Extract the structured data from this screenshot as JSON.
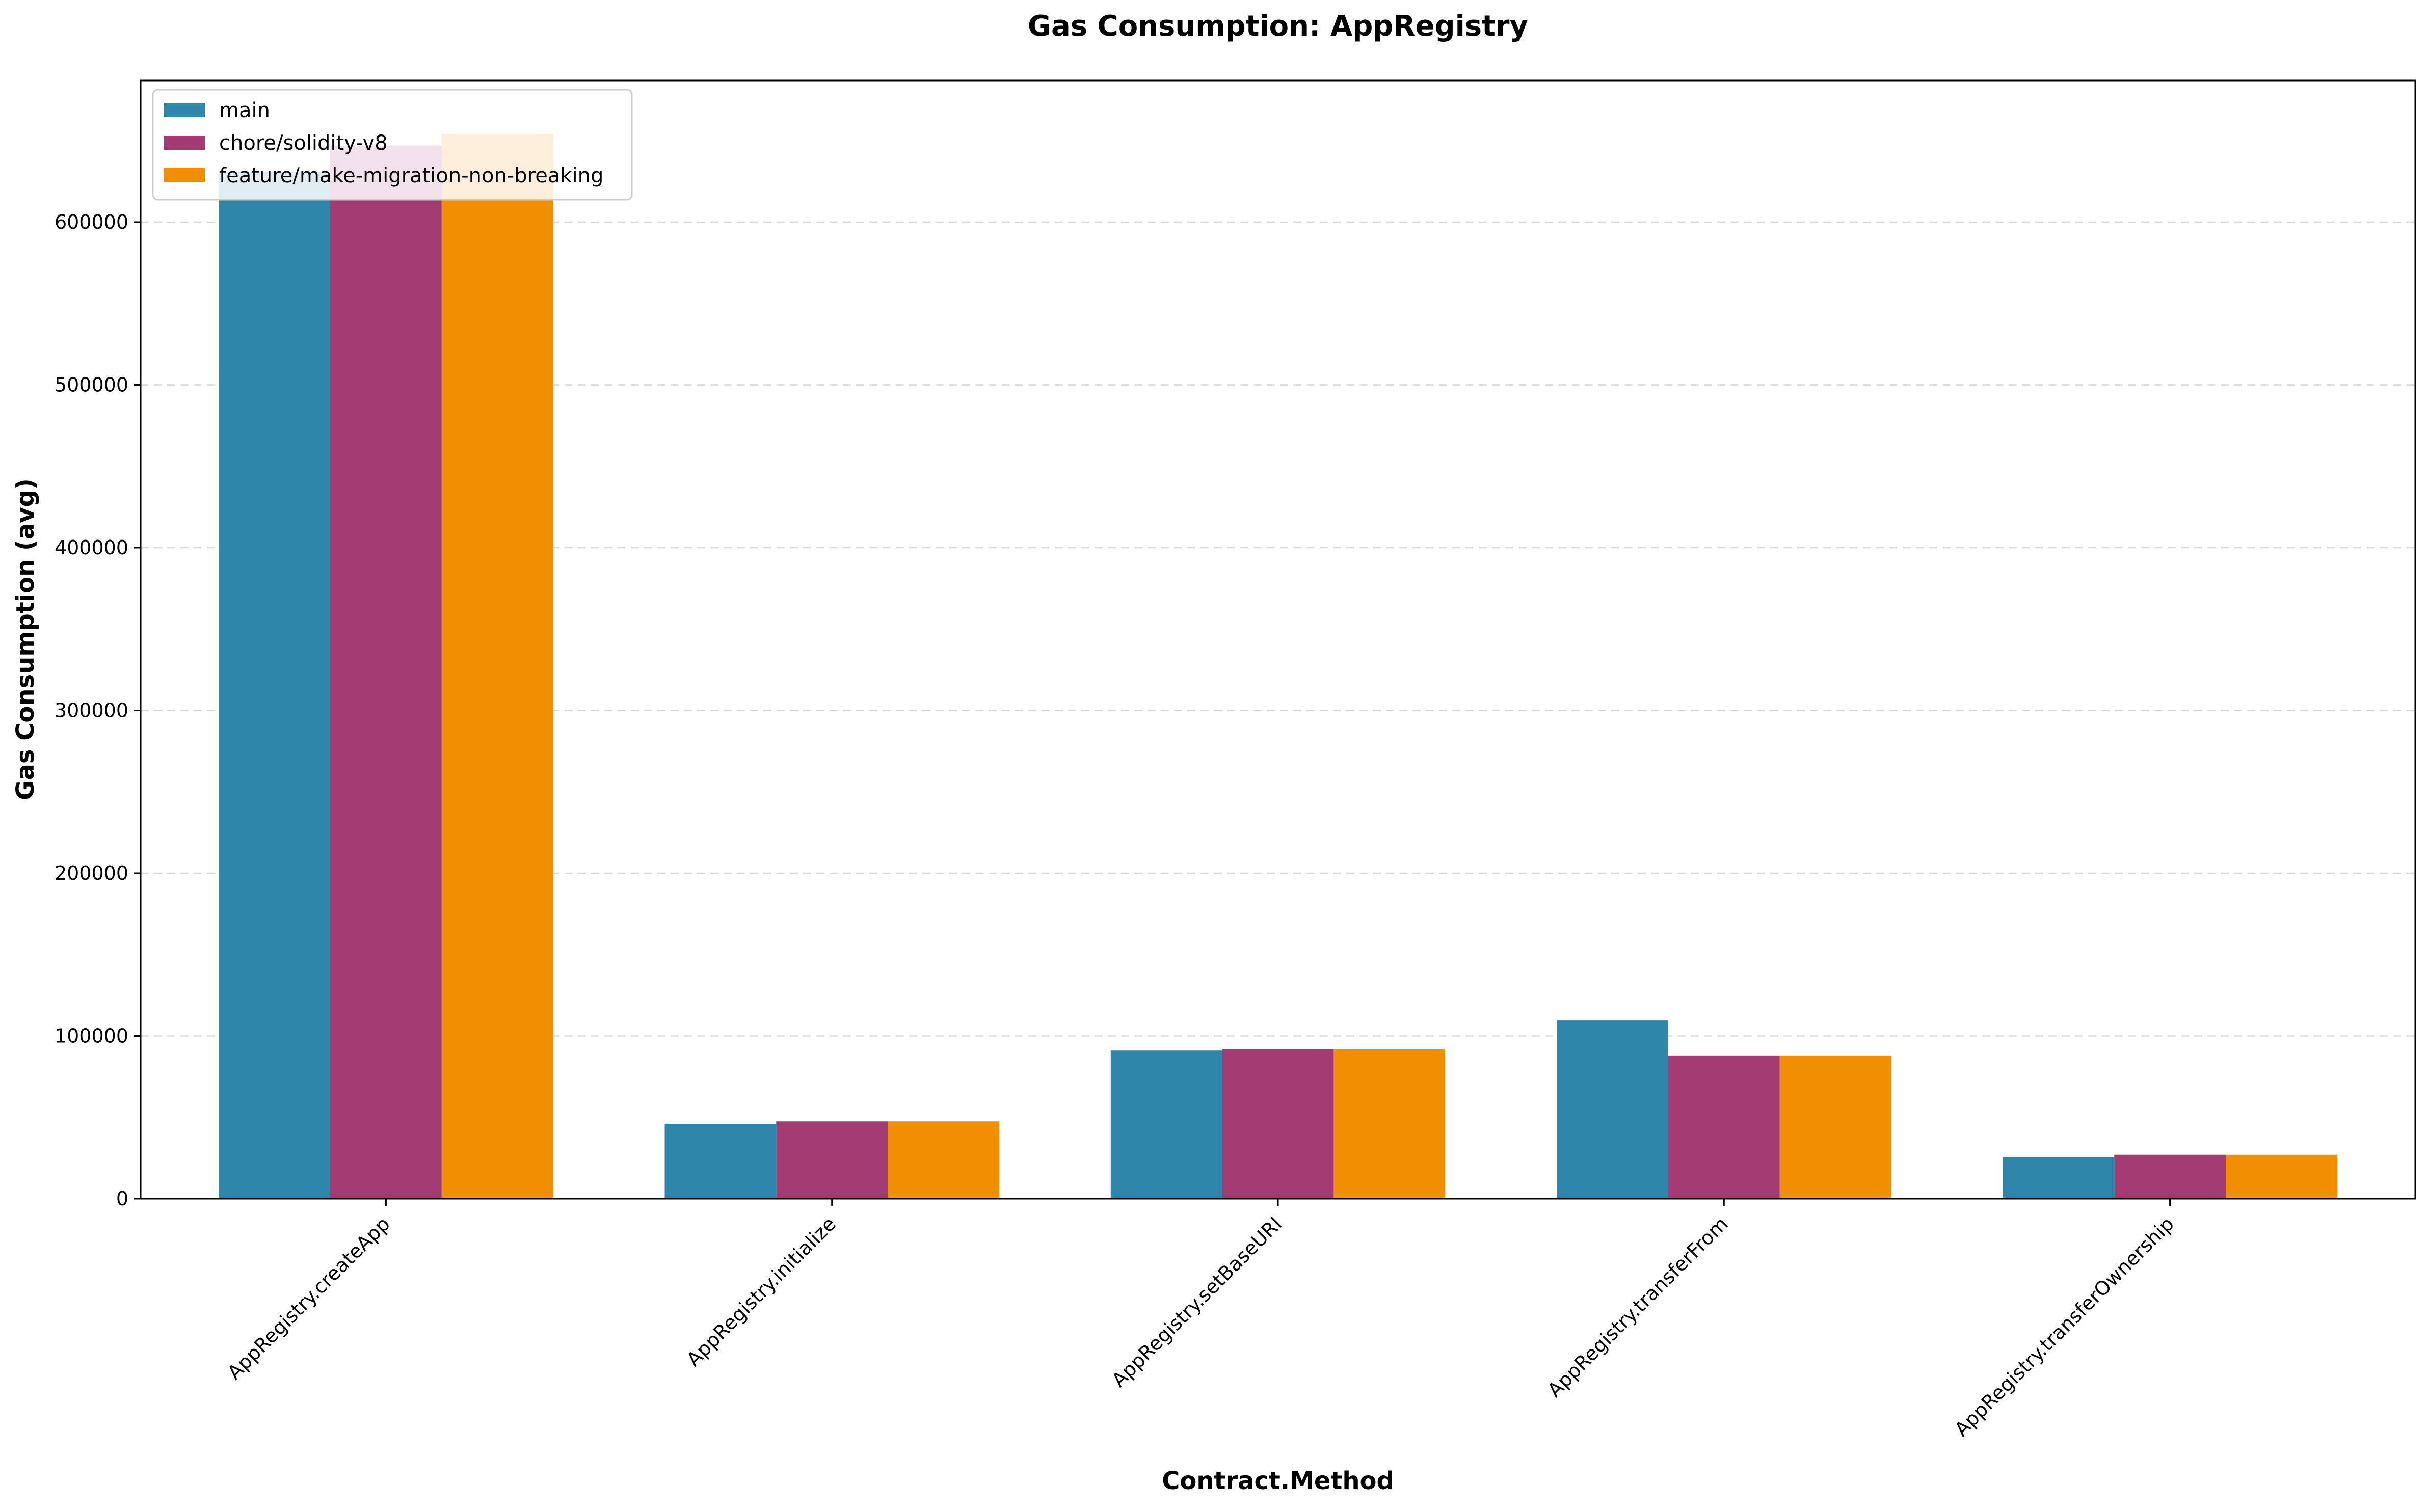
{
  "chart_data": {
    "type": "bar",
    "title": "Gas Consumption: AppRegistry",
    "xlabel": "Contract.Method",
    "ylabel": "Gas Consumption (avg)",
    "categories": [
      "AppRegistry.createApp",
      "AppRegistry.initialize",
      "AppRegistry.setBaseURI",
      "AppRegistry.transferFrom",
      "AppRegistry.transferOwnership"
    ],
    "series": [
      {
        "name": "main",
        "color": "#2e86ab",
        "values": [
          631000,
          46000,
          91000,
          109500,
          25500
        ]
      },
      {
        "name": "chore/solidity-v8",
        "color": "#a23b72",
        "values": [
          647000,
          47500,
          92000,
          88000,
          27000
        ]
      },
      {
        "name": "feature/make-migration-non-breaking",
        "color": "#f18f01",
        "values": [
          654000,
          47500,
          92000,
          88000,
          27000
        ]
      }
    ],
    "ylim": [
      0,
      687000
    ],
    "yticks": [
      0,
      100000,
      200000,
      300000,
      400000,
      500000,
      600000
    ],
    "ytick_labels": [
      "0",
      "100000",
      "200000",
      "300000",
      "400000",
      "500000",
      "600000"
    ],
    "grid": "horizontal-dashed",
    "legend_position": "top-left"
  }
}
